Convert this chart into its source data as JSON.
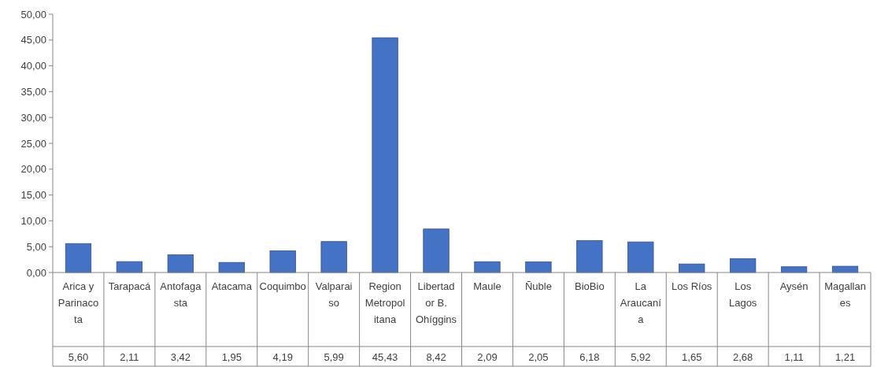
{
  "chart_data": {
    "type": "bar",
    "categories": [
      "Arica y Parinacota",
      "Tarapacá",
      "Antofagasta",
      "Atacama",
      "Coquimbo",
      "Valparaiso",
      "Region Metropolitana",
      "Libertador B. Ohíggins",
      "Maule",
      "Ñuble",
      "BioBio",
      "La Araucanía",
      "Los Ríos",
      "Los Lagos",
      "Aysén",
      "Magallanes"
    ],
    "values": [
      5.6,
      2.11,
      3.42,
      1.95,
      4.19,
      5.99,
      45.43,
      8.42,
      2.09,
      2.05,
      6.18,
      5.92,
      1.65,
      2.68,
      1.11,
      1.21
    ],
    "value_labels": [
      "5,60",
      "2,11",
      "3,42",
      "1,95",
      "4,19",
      "5,99",
      "45,43",
      "8,42",
      "2,09",
      "2,05",
      "6,18",
      "5,92",
      "1,65",
      "2,68",
      "1,11",
      "1,21"
    ],
    "color": "#4472c4",
    "ylim": [
      0,
      50
    ],
    "yticks": [
      {
        "value": 0,
        "label": "0,00"
      },
      {
        "value": 5,
        "label": "5,00"
      },
      {
        "value": 10,
        "label": "10,00"
      },
      {
        "value": 15,
        "label": "15,00"
      },
      {
        "value": 20,
        "label": "20,00"
      },
      {
        "value": 25,
        "label": "25,00"
      },
      {
        "value": 30,
        "label": "30,00"
      },
      {
        "value": 35,
        "label": "35,00"
      },
      {
        "value": 40,
        "label": "40,00"
      },
      {
        "value": 45,
        "label": "45,00"
      },
      {
        "value": 50,
        "label": "50,00"
      }
    ],
    "grid": false
  }
}
